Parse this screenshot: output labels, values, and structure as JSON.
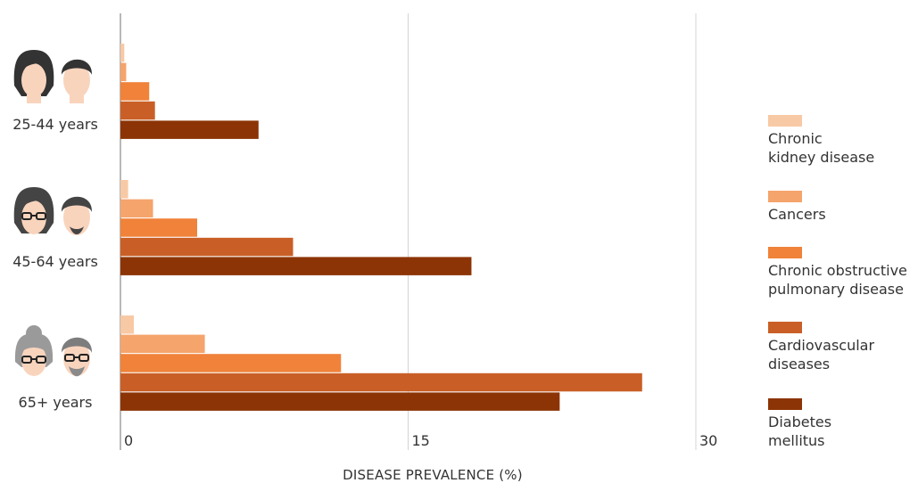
{
  "chart_data": {
    "type": "bar",
    "orientation": "horizontal",
    "xlabel": "DISEASE PREVALENCE (%)",
    "xlim": [
      0,
      30
    ],
    "xticks": [
      "0",
      "15",
      "30"
    ],
    "grid": true,
    "legend_position": "right",
    "categories": [
      "25-44 years",
      "45-64 years",
      "65+ years"
    ],
    "series": [
      {
        "name": "Chronic kidney disease",
        "legend_lines": [
          "Chronic",
          "kidney disease"
        ],
        "color": "#f8c9a5",
        "values": [
          0.2,
          0.4,
          0.7
        ]
      },
      {
        "name": "Cancers",
        "legend_lines": [
          "Cancers"
        ],
        "color": "#f5a46c",
        "values": [
          0.3,
          1.7,
          4.4
        ]
      },
      {
        "name": "Chronic obstructive pulmonary disease",
        "legend_lines": [
          "Chronic obstructive",
          "pulmonary disease"
        ],
        "color": "#f0823a",
        "values": [
          1.5,
          4.0,
          11.5
        ]
      },
      {
        "name": "Cardiovascular diseases",
        "legend_lines": [
          "Cardiovascular",
          "diseases"
        ],
        "color": "#c95f26",
        "values": [
          1.8,
          9.0,
          27.2
        ]
      },
      {
        "name": "Diabetes mellitus",
        "legend_lines": [
          "Diabetes",
          "mellitus"
        ],
        "color": "#8c3405",
        "values": [
          7.2,
          18.3,
          22.9
        ]
      }
    ]
  },
  "icons": [
    "young-couple-icon",
    "middle-aged-couple-icon",
    "elderly-couple-icon"
  ]
}
